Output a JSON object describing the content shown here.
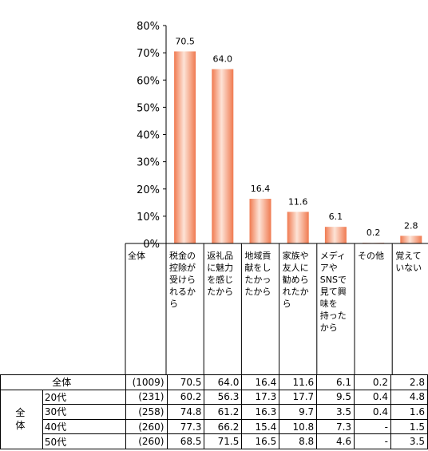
{
  "chart_data": {
    "type": "bar",
    "categories": [
      "税金の控除が受けられるから",
      "返礼品に魅力を感じたから",
      "地域貢献をしたかったから",
      "家族や友人に勧められたから",
      "メディアやSNSで見て興味を持ったから",
      "その他",
      "覚えていない"
    ],
    "category_lines": [
      [
        "税金の",
        "控除が",
        "受けら",
        "れるか",
        "ら"
      ],
      [
        "返礼品",
        "に魅力",
        "を感じ",
        "たから"
      ],
      [
        "地域貢",
        "献をし",
        "たかっ",
        "たから"
      ],
      [
        "家族や",
        "友人に",
        "勧めら",
        "れたか",
        "ら"
      ],
      [
        "メディ",
        "アや",
        "SNSで",
        "見て興",
        "味を",
        "持った",
        "から"
      ],
      [
        "その他"
      ],
      [
        "覚えて",
        "いない"
      ]
    ],
    "values": [
      70.5,
      64.0,
      16.4,
      11.6,
      6.1,
      0.2,
      2.8
    ],
    "value_labels": [
      "70.5",
      "64.0",
      "16.4",
      "11.6",
      "6.1",
      "0.2",
      "2.8"
    ],
    "ylim": [
      0,
      80
    ],
    "yticks": [
      "0%",
      "10%",
      "20%",
      "30%",
      "40%",
      "50%",
      "60%",
      "70%",
      "80%"
    ],
    "bar_color": "#f07a50",
    "bar_highlight": "#fde3d6"
  },
  "table": {
    "corner_label": "全体",
    "group_label": [
      "全",
      "体"
    ],
    "rows": [
      {
        "label": "全体",
        "n": "(1009)",
        "values": [
          "70.5",
          "64.0",
          "16.4",
          "11.6",
          "6.1",
          "0.2",
          "2.8"
        ]
      },
      {
        "label": "20代",
        "n": "(231)",
        "values": [
          "60.2",
          "56.3",
          "17.3",
          "17.7",
          "9.5",
          "0.4",
          "4.8"
        ]
      },
      {
        "label": "30代",
        "n": "(258)",
        "values": [
          "74.8",
          "61.2",
          "16.3",
          "9.7",
          "3.5",
          "0.4",
          "1.6"
        ]
      },
      {
        "label": "40代",
        "n": "(260)",
        "values": [
          "77.3",
          "66.2",
          "15.4",
          "10.8",
          "7.3",
          "-",
          "1.5"
        ]
      },
      {
        "label": "50代",
        "n": "(260)",
        "values": [
          "68.5",
          "71.5",
          "16.5",
          "8.8",
          "4.6",
          "-",
          "3.5"
        ]
      }
    ]
  }
}
